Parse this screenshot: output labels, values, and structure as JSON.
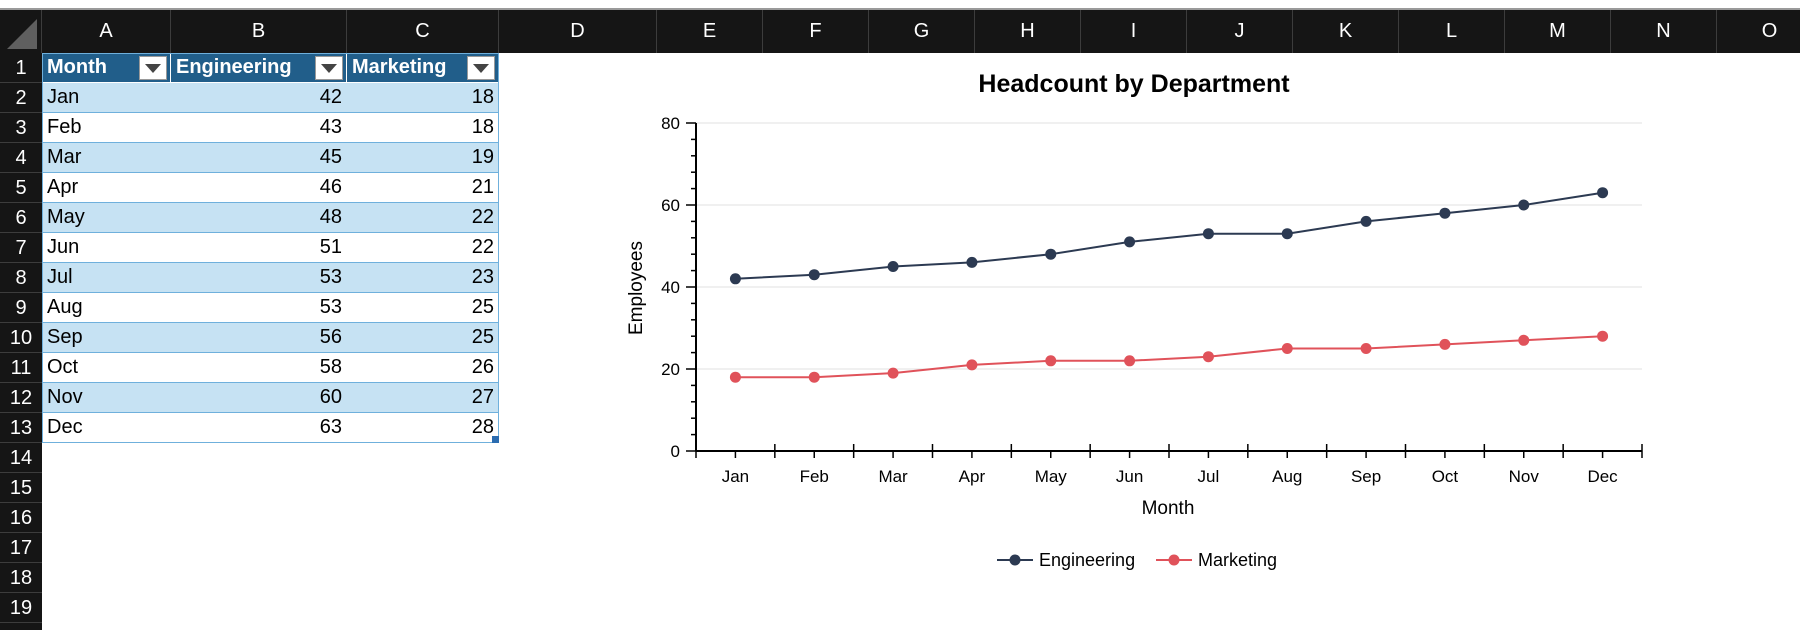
{
  "columns": [
    "A",
    "B",
    "C",
    "D",
    "E",
    "F",
    "G",
    "H",
    "I",
    "J",
    "K",
    "L",
    "M",
    "N",
    "O"
  ],
  "rows": [
    "1",
    "2",
    "3",
    "4",
    "5",
    "6",
    "7",
    "8",
    "9",
    "10",
    "11",
    "12",
    "13",
    "14",
    "15",
    "16",
    "17",
    "18",
    "19"
  ],
  "table": {
    "headers": [
      "Month",
      "Engineering",
      "Marketing"
    ],
    "data": [
      [
        "Jan",
        "42",
        "18"
      ],
      [
        "Feb",
        "43",
        "18"
      ],
      [
        "Mar",
        "45",
        "19"
      ],
      [
        "Apr",
        "46",
        "21"
      ],
      [
        "May",
        "48",
        "22"
      ],
      [
        "Jun",
        "51",
        "22"
      ],
      [
        "Jul",
        "53",
        "23"
      ],
      [
        "Aug",
        "53",
        "25"
      ],
      [
        "Sep",
        "56",
        "25"
      ],
      [
        "Oct",
        "58",
        "26"
      ],
      [
        "Nov",
        "60",
        "27"
      ],
      [
        "Dec",
        "63",
        "28"
      ]
    ]
  },
  "icons": {
    "filter": "dropdown-triangle-icon",
    "select_all": "select-all-triangle-icon",
    "resize": "table-resize-handle-icon"
  },
  "colors": {
    "table_header": "#215e8a",
    "band": "#c6e2f3",
    "engineering": "#2c3a52",
    "marketing": "#e0525a"
  },
  "chart_data": {
    "type": "line",
    "title": "Headcount by Department",
    "xlabel": "Month",
    "ylabel": "Employees",
    "categories": [
      "Jan",
      "Feb",
      "Mar",
      "Apr",
      "May",
      "Jun",
      "Jul",
      "Aug",
      "Sep",
      "Oct",
      "Nov",
      "Dec"
    ],
    "series": [
      {
        "name": "Engineering",
        "color": "#2c3a52",
        "values": [
          42,
          43,
          45,
          46,
          48,
          51,
          53,
          53,
          56,
          58,
          60,
          63
        ]
      },
      {
        "name": "Marketing",
        "color": "#e0525a",
        "values": [
          18,
          18,
          19,
          21,
          22,
          22,
          23,
          25,
          25,
          26,
          27,
          28
        ]
      }
    ],
    "ylim": [
      0,
      80
    ],
    "yticks": [
      "0",
      "20",
      "40",
      "60",
      "80"
    ],
    "grid": true,
    "legend": "bottom"
  }
}
